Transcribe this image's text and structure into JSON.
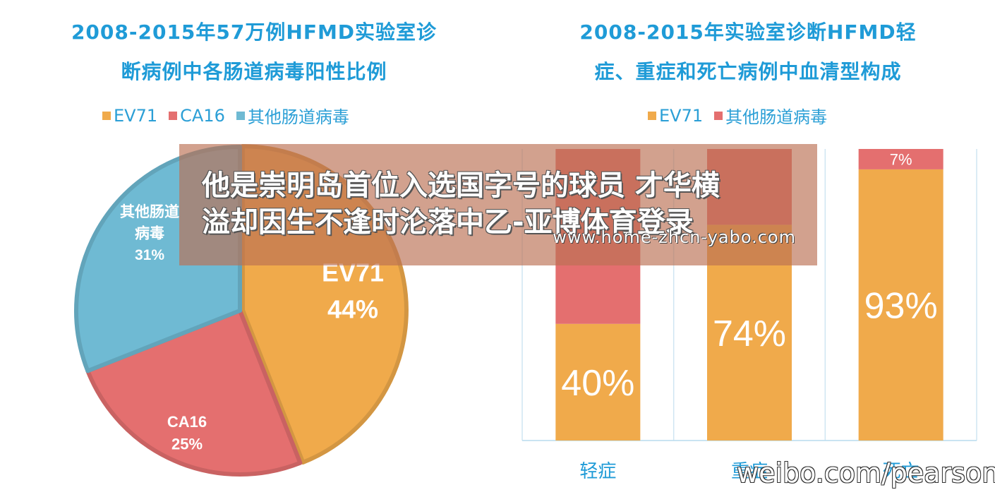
{
  "chart_data": [
    {
      "type": "pie",
      "title_lines": [
        "2008-2015年57万例HFMD实验室诊",
        "断病例中各肠道病毒阳性比例"
      ],
      "legend": [
        {
          "name": "EV71",
          "color": "#f0aa4b"
        },
        {
          "name": "CA16",
          "color": "#e46f6f"
        },
        {
          "name": "其他肠道病毒",
          "color": "#6fbad3"
        }
      ],
      "slices": [
        {
          "name": "EV71",
          "label_lines": [
            "EV71",
            "44%"
          ],
          "value": 44,
          "color": "#f0aa4b"
        },
        {
          "name": "CA16",
          "label_lines": [
            "CA16",
            "25%"
          ],
          "value": 25,
          "color": "#e46f6f"
        },
        {
          "name": "其他肠道病毒",
          "label_lines": [
            "其他肠道",
            "病毒",
            "31%"
          ],
          "value": 31,
          "color": "#6fbad3"
        }
      ]
    },
    {
      "type": "bar",
      "stacked": true,
      "percent": true,
      "title_lines": [
        "2008-2015年实验室诊断HFMD轻",
        "症、重症和死亡病例中血清型构成"
      ],
      "categories": [
        "轻症",
        "重症",
        "死亡"
      ],
      "series": [
        {
          "name": "EV71",
          "values": [
            40,
            74,
            93
          ],
          "labels": [
            "40%",
            "74%",
            "93%"
          ],
          "color": "#f0aa4b"
        },
        {
          "name": "其他肠道病毒",
          "values": [
            60,
            26,
            7
          ],
          "labels": [
            "",
            "",
            "7%"
          ],
          "color": "#e46f6f"
        }
      ],
      "ylim": [
        0,
        100
      ]
    }
  ],
  "overlay": {
    "line1": "他是崇明岛首位入选国字号的球员 才华横",
    "line2": "溢却因生不逢时沦落中乙-亚博体育登录",
    "url": "www.home-zhcn-yabo.com"
  },
  "watermark": "weibo.com/pearson"
}
